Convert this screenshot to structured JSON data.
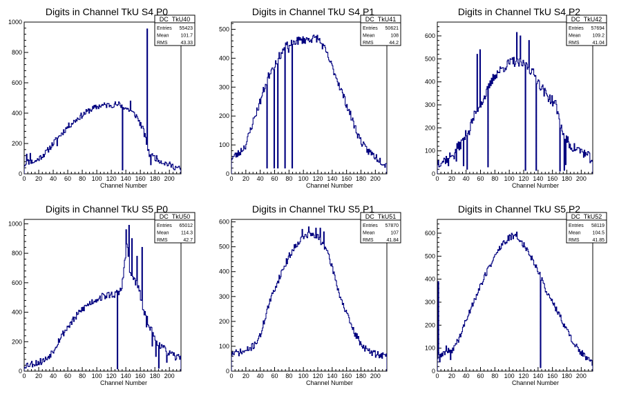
{
  "canvas": {
    "background": "#ffffff"
  },
  "style": {
    "line_color": "#00007f",
    "axis_color": "#000000"
  },
  "chart_data": [
    {
      "type": "bar",
      "histogram": true,
      "title": "Digits in Channel TkU S4 P0",
      "xlabel": "Channel Number",
      "ylabel": "",
      "xlim": [
        0,
        216
      ],
      "ylim": [
        0,
        1000
      ],
      "xticks": [
        0,
        20,
        40,
        60,
        80,
        100,
        120,
        140,
        160,
        180,
        200
      ],
      "yticks": [
        0,
        200,
        400,
        600,
        800,
        1000
      ],
      "stats": {
        "name": "DC_TkU40",
        "entries": "55423",
        "mean": "101.7",
        "rms": "43.33",
        "labels": {
          "entries": "Entries",
          "mean": "Mean",
          "rms": "RMS"
        }
      },
      "profile": [
        [
          0,
          60
        ],
        [
          5,
          80
        ],
        [
          15,
          80
        ],
        [
          30,
          140
        ],
        [
          45,
          230
        ],
        [
          60,
          310
        ],
        [
          75,
          370
        ],
        [
          90,
          420
        ],
        [
          105,
          450
        ],
        [
          120,
          455
        ],
        [
          130,
          460
        ],
        [
          145,
          420
        ],
        [
          155,
          380
        ],
        [
          165,
          280
        ],
        [
          172,
          130
        ],
        [
          190,
          80
        ],
        [
          205,
          50
        ],
        [
          216,
          30
        ]
      ],
      "noise": 20,
      "seed": 11,
      "spikes": [
        [
          3,
          130
        ],
        [
          8,
          135
        ],
        [
          45,
          185
        ],
        [
          128,
          450
        ],
        [
          135,
          25
        ],
        [
          146,
          480
        ],
        [
          165,
          245
        ],
        [
          169,
          955
        ],
        [
          174,
          60
        ],
        [
          178,
          120
        ]
      ]
    },
    {
      "type": "bar",
      "histogram": true,
      "title": "Digits in Channel TkU S4 P1",
      "xlabel": "Channel Number",
      "ylabel": "",
      "xlim": [
        0,
        216
      ],
      "ylim": [
        0,
        525
      ],
      "xticks": [
        0,
        20,
        40,
        60,
        80,
        100,
        120,
        140,
        160,
        180,
        200
      ],
      "yticks": [
        0,
        100,
        200,
        300,
        400,
        500
      ],
      "stats": {
        "name": "DC_TkU41",
        "entries": "50621",
        "mean": "108",
        "rms": "44.2",
        "labels": {
          "entries": "Entries",
          "mean": "Mean",
          "rms": "RMS"
        }
      },
      "profile": [
        [
          0,
          55
        ],
        [
          10,
          70
        ],
        [
          20,
          100
        ],
        [
          30,
          180
        ],
        [
          40,
          250
        ],
        [
          50,
          330
        ],
        [
          60,
          380
        ],
        [
          75,
          440
        ],
        [
          90,
          460
        ],
        [
          105,
          465
        ],
        [
          120,
          470
        ],
        [
          130,
          430
        ],
        [
          145,
          340
        ],
        [
          160,
          240
        ],
        [
          175,
          140
        ],
        [
          185,
          90
        ],
        [
          200,
          60
        ],
        [
          216,
          30
        ]
      ],
      "noise": 14,
      "seed": 23,
      "spikes": [
        [
          49,
          20
        ],
        [
          55,
          360
        ],
        [
          59,
          20
        ],
        [
          62,
          380
        ],
        [
          64,
          20
        ],
        [
          68,
          400
        ],
        [
          74,
          20
        ],
        [
          79,
          420
        ],
        [
          84,
          20
        ]
      ]
    },
    {
      "type": "bar",
      "histogram": true,
      "title": "Digits in Channel TkU S4 P2",
      "xlabel": "Channel Number",
      "ylabel": "",
      "xlim": [
        0,
        216
      ],
      "ylim": [
        0,
        660
      ],
      "xticks": [
        0,
        20,
        40,
        60,
        80,
        100,
        120,
        140,
        160,
        180,
        200
      ],
      "yticks": [
        0,
        100,
        200,
        300,
        400,
        500,
        600
      ],
      "stats": {
        "name": "DC_TkU42",
        "entries": "57694",
        "mean": "109.2",
        "rms": "41.04",
        "labels": {
          "entries": "Entries",
          "mean": "Mean",
          "rms": "RMS"
        }
      },
      "profile": [
        [
          0,
          50
        ],
        [
          10,
          60
        ],
        [
          20,
          80
        ],
        [
          35,
          140
        ],
        [
          45,
          200
        ],
        [
          55,
          280
        ],
        [
          65,
          330
        ],
        [
          80,
          430
        ],
        [
          95,
          470
        ],
        [
          105,
          490
        ],
        [
          115,
          480
        ],
        [
          125,
          470
        ],
        [
          135,
          430
        ],
        [
          150,
          350
        ],
        [
          165,
          300
        ],
        [
          172,
          200
        ],
        [
          185,
          120
        ],
        [
          200,
          100
        ],
        [
          216,
          60
        ]
      ],
      "noise": 22,
      "seed": 37,
      "spikes": [
        [
          2,
          30
        ],
        [
          7,
          55
        ],
        [
          15,
          35
        ],
        [
          20,
          80
        ],
        [
          23,
          65
        ],
        [
          26,
          55
        ],
        [
          36,
          35
        ],
        [
          41,
          20
        ],
        [
          44,
          170
        ],
        [
          55,
          520
        ],
        [
          59,
          540
        ],
        [
          70,
          30
        ],
        [
          110,
          615
        ],
        [
          115,
          600
        ],
        [
          122,
          15
        ],
        [
          127,
          580
        ],
        [
          137,
          15
        ],
        [
          170,
          12
        ],
        [
          176,
          15
        ],
        [
          178,
          40
        ]
      ]
    },
    {
      "type": "bar",
      "histogram": true,
      "title": "Digits in Channel TkU S5 P0",
      "xlabel": "Channel Number",
      "ylabel": "",
      "xlim": [
        0,
        216
      ],
      "ylim": [
        0,
        1030
      ],
      "xticks": [
        0,
        20,
        40,
        60,
        80,
        100,
        120,
        140,
        160,
        180,
        200
      ],
      "yticks": [
        0,
        200,
        400,
        600,
        800,
        1000
      ],
      "stats": {
        "name": "DC_TkU50",
        "entries": "65012",
        "mean": "114.3",
        "rms": "42.7",
        "labels": {
          "entries": "Entries",
          "mean": "Mean",
          "rms": "RMS"
        }
      },
      "profile": [
        [
          0,
          40
        ],
        [
          10,
          50
        ],
        [
          20,
          60
        ],
        [
          30,
          80
        ],
        [
          40,
          140
        ],
        [
          50,
          230
        ],
        [
          60,
          300
        ],
        [
          70,
          360
        ],
        [
          80,
          420
        ],
        [
          90,
          460
        ],
        [
          100,
          490
        ],
        [
          110,
          510
        ],
        [
          120,
          520
        ],
        [
          130,
          530
        ],
        [
          134,
          560
        ],
        [
          138,
          720
        ],
        [
          142,
          860
        ],
        [
          146,
          650
        ],
        [
          150,
          640
        ],
        [
          158,
          560
        ],
        [
          165,
          400
        ],
        [
          172,
          320
        ],
        [
          180,
          220
        ],
        [
          190,
          160
        ],
        [
          200,
          120
        ],
        [
          210,
          90
        ],
        [
          216,
          110
        ]
      ],
      "noise": 25,
      "seed": 53,
      "spikes": [
        [
          105,
          480
        ],
        [
          124,
          500
        ],
        [
          128,
          15
        ],
        [
          134,
          560
        ],
        [
          140,
          960
        ],
        [
          144,
          990
        ],
        [
          148,
          900
        ],
        [
          155,
          780
        ],
        [
          162,
          840
        ],
        [
          168,
          300
        ],
        [
          176,
          170
        ],
        [
          181,
          100
        ],
        [
          185,
          20
        ],
        [
          196,
          60
        ]
      ]
    },
    {
      "type": "bar",
      "histogram": true,
      "title": "Digits in Channel TkU S5 P1",
      "xlabel": "Channel Number",
      "ylabel": "",
      "xlim": [
        0,
        216
      ],
      "ylim": [
        0,
        610
      ],
      "xticks": [
        0,
        20,
        40,
        60,
        80,
        100,
        120,
        140,
        160,
        180,
        200
      ],
      "yticks": [
        0,
        100,
        200,
        300,
        400,
        500,
        600
      ],
      "stats": {
        "name": "DC_TkU51",
        "entries": "57870",
        "mean": "107",
        "rms": "41.84",
        "labels": {
          "entries": "Entries",
          "mean": "Mean",
          "rms": "RMS"
        }
      },
      "profile": [
        [
          0,
          70
        ],
        [
          10,
          75
        ],
        [
          20,
          80
        ],
        [
          30,
          100
        ],
        [
          40,
          140
        ],
        [
          50,
          250
        ],
        [
          60,
          330
        ],
        [
          70,
          400
        ],
        [
          80,
          460
        ],
        [
          90,
          510
        ],
        [
          100,
          540
        ],
        [
          110,
          550
        ],
        [
          120,
          540
        ],
        [
          130,
          500
        ],
        [
          140,
          420
        ],
        [
          150,
          310
        ],
        [
          160,
          230
        ],
        [
          170,
          160
        ],
        [
          180,
          110
        ],
        [
          190,
          80
        ],
        [
          200,
          70
        ],
        [
          216,
          60
        ]
      ],
      "noise": 14,
      "seed": 71,
      "spikes": [
        [
          98,
          570
        ],
        [
          107,
          580
        ],
        [
          117,
          575
        ],
        [
          123,
          575
        ],
        [
          128,
          560
        ]
      ]
    },
    {
      "type": "bar",
      "histogram": true,
      "title": "Digits in Channel TkU S5 P2",
      "xlabel": "Channel Number",
      "ylabel": "",
      "xlim": [
        0,
        216
      ],
      "ylim": [
        0,
        660
      ],
      "xticks": [
        0,
        20,
        40,
        60,
        80,
        100,
        120,
        140,
        160,
        180,
        200
      ],
      "yticks": [
        0,
        100,
        200,
        300,
        400,
        500,
        600
      ],
      "stats": {
        "name": "DC_TkU52",
        "entries": "58119",
        "mean": "104.5",
        "rms": "41.85",
        "labels": {
          "entries": "Entries",
          "mean": "Mean",
          "rms": "RMS"
        }
      },
      "profile": [
        [
          0,
          60
        ],
        [
          5,
          70
        ],
        [
          10,
          80
        ],
        [
          20,
          90
        ],
        [
          30,
          140
        ],
        [
          40,
          220
        ],
        [
          50,
          300
        ],
        [
          60,
          370
        ],
        [
          70,
          440
        ],
        [
          80,
          500
        ],
        [
          90,
          550
        ],
        [
          100,
          580
        ],
        [
          110,
          585
        ],
        [
          120,
          550
        ],
        [
          130,
          500
        ],
        [
          140,
          440
        ],
        [
          150,
          360
        ],
        [
          160,
          300
        ],
        [
          170,
          240
        ],
        [
          180,
          180
        ],
        [
          190,
          120
        ],
        [
          200,
          80
        ],
        [
          210,
          50
        ],
        [
          216,
          30
        ]
      ],
      "noise": 14,
      "seed": 89,
      "spikes": [
        [
          1,
          390
        ],
        [
          3,
          40
        ],
        [
          12,
          110
        ],
        [
          18,
          50
        ],
        [
          103,
          600
        ],
        [
          110,
          605
        ],
        [
          143,
          15
        ]
      ]
    }
  ]
}
